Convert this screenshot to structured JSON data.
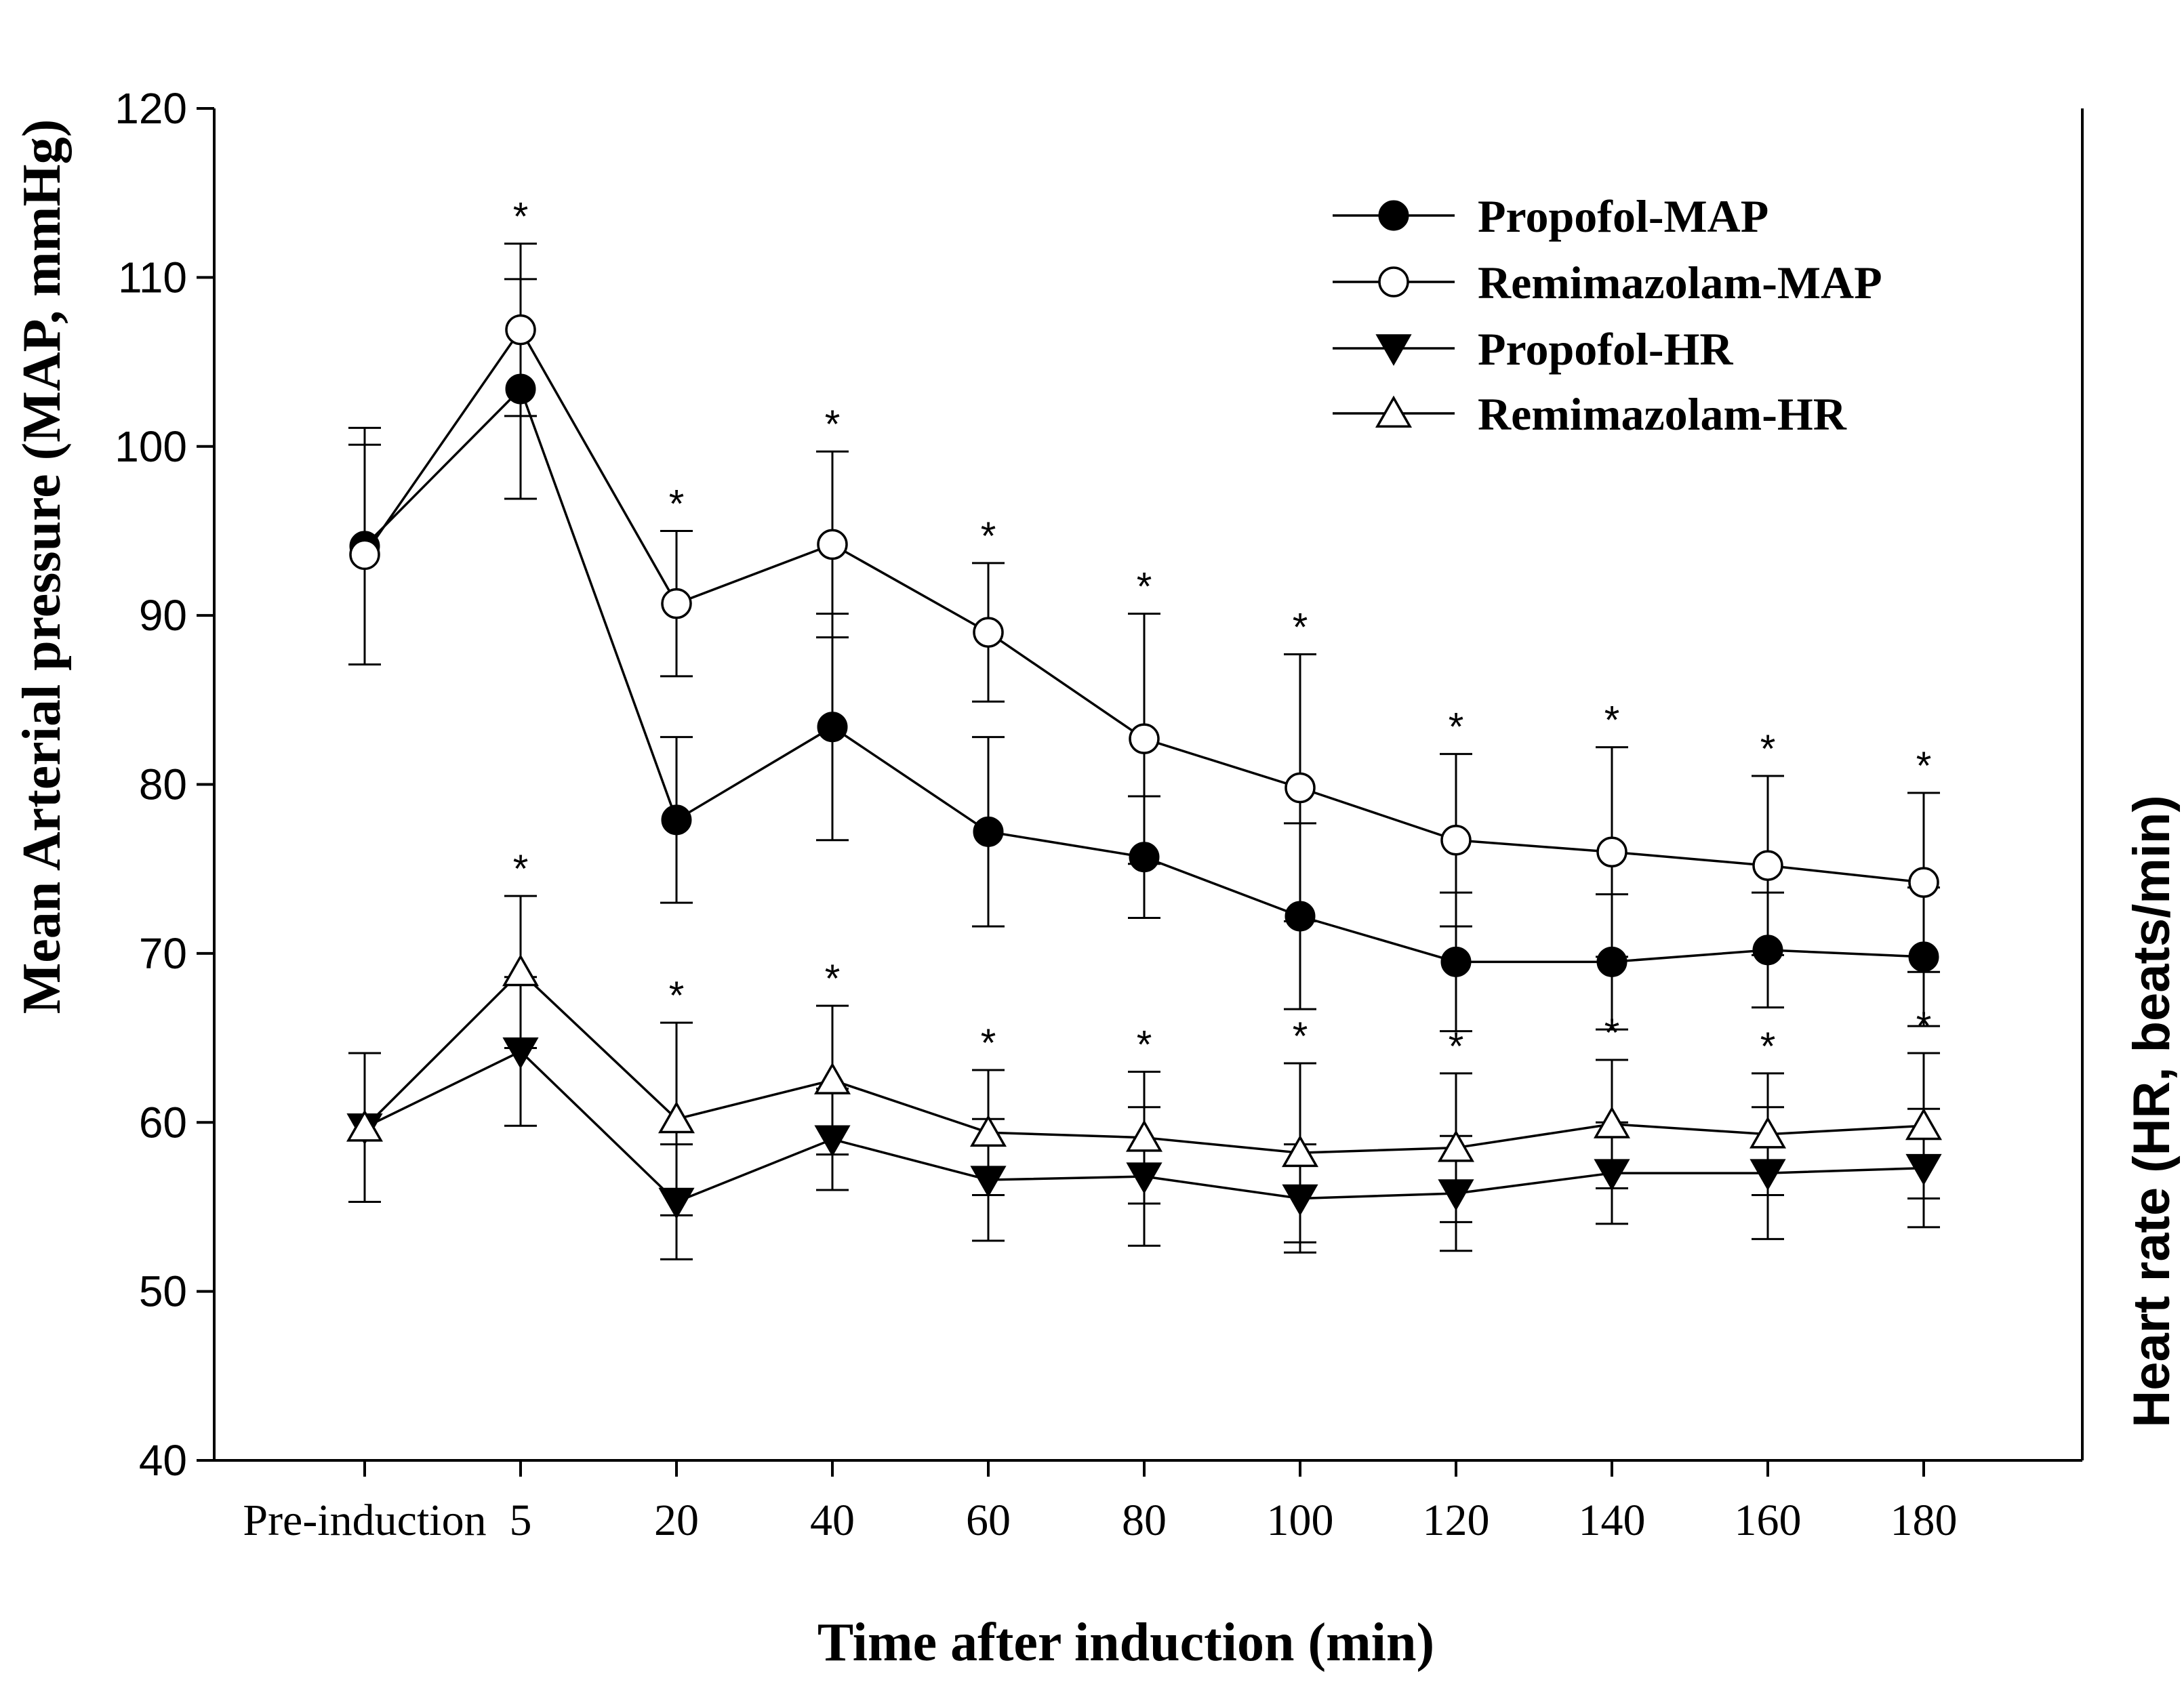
{
  "chart_data": {
    "type": "line",
    "title": "",
    "xlabel": "Time after induction (min)",
    "ylabel": "Mean Arterial pressure (MAP, mmHg)",
    "ylabel_right": "Heart rate (HR, beats/min)",
    "ylim": [
      40,
      120
    ],
    "yticks": [
      "40",
      "50",
      "60",
      "70",
      "80",
      "90",
      "100",
      "110",
      "120"
    ],
    "categories": [
      "Pre-induction",
      "5",
      "20",
      "40",
      "60",
      "80",
      "100",
      "120",
      "140",
      "160",
      "180"
    ],
    "legend_position": "top-right",
    "series": [
      {
        "name": "Propofol-MAP",
        "marker": "filled-circle",
        "values": [
          94.1,
          103.4,
          77.9,
          83.4,
          77.2,
          75.7,
          72.2,
          69.5,
          69.5,
          70.2,
          69.8
        ],
        "errors": [
          7.0,
          6.5,
          4.9,
          6.7,
          5.6,
          3.6,
          5.5,
          4.1,
          4.0,
          3.4,
          4.1
        ]
      },
      {
        "name": "Remimazolam-MAP",
        "marker": "open-circle",
        "values": [
          93.6,
          106.9,
          90.7,
          94.2,
          89.0,
          82.7,
          79.8,
          76.7,
          76.0,
          75.2,
          74.2
        ],
        "errors": [
          6.5,
          5.1,
          4.3,
          5.5,
          4.1,
          7.4,
          7.9,
          5.1,
          6.2,
          5.3,
          5.3
        ]
      },
      {
        "name": "Propofol-HR",
        "marker": "filled-triangle-down",
        "values": [
          59.7,
          64.2,
          55.3,
          59.0,
          56.6,
          56.8,
          55.5,
          55.8,
          57.0,
          57.0,
          57.3
        ],
        "errors": [
          4.4,
          4.4,
          3.4,
          3.0,
          3.6,
          4.1,
          3.2,
          3.4,
          3.0,
          3.9,
          3.5
        ]
      },
      {
        "name": "Remimazolam-HR",
        "marker": "open-triangle-up",
        "values": [
          59.7,
          68.9,
          60.2,
          62.5,
          59.4,
          59.1,
          58.2,
          58.5,
          59.9,
          59.3,
          59.8
        ],
        "errors": [
          4.4,
          4.5,
          5.7,
          4.4,
          3.7,
          3.9,
          5.3,
          4.4,
          3.8,
          3.6,
          4.3
        ]
      }
    ],
    "significance_marker": "*",
    "significance_map_categories": [
      "5",
      "20",
      "40",
      "60",
      "80",
      "100",
      "120",
      "140",
      "160",
      "180"
    ],
    "significance_hr_categories": [
      "5",
      "20",
      "40",
      "60",
      "80",
      "100",
      "120",
      "140",
      "160",
      "180"
    ]
  }
}
